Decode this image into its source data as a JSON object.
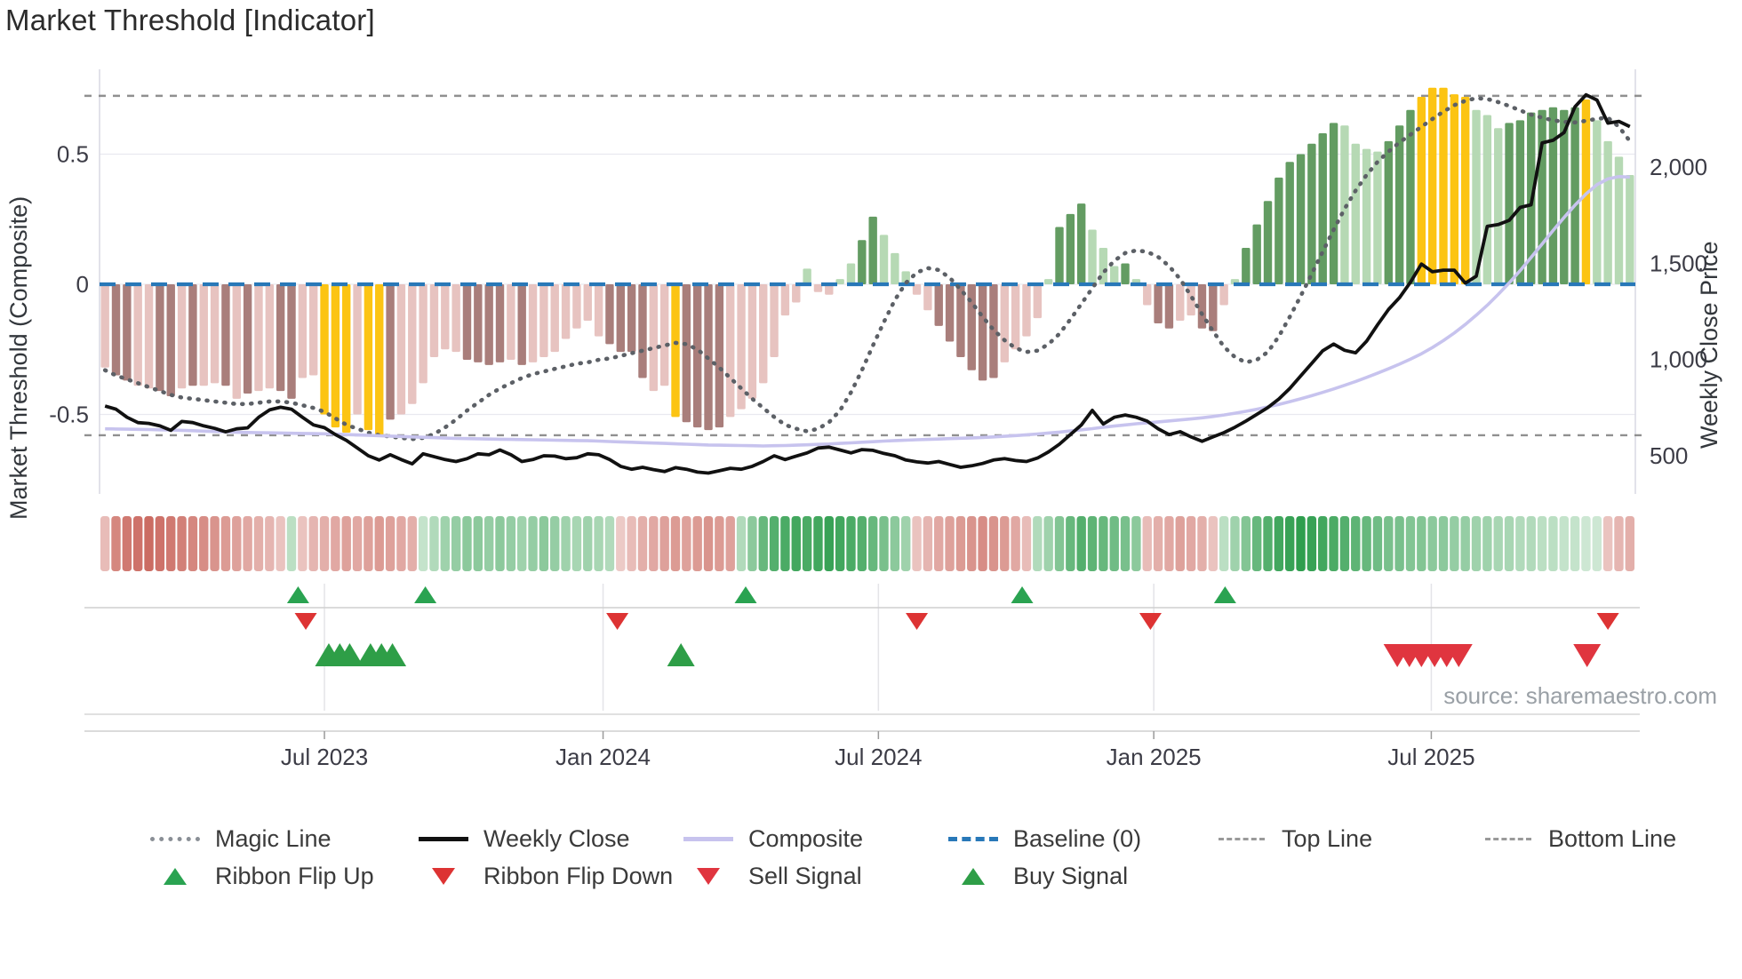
{
  "title": "Market Threshold [Indicator]",
  "source_text": "source: sharemaestro.com",
  "axes": {
    "left_title": "Market Threshold (Composite)",
    "right_title": "Weekly Close Price",
    "left_ticks": [
      {
        "value": 0.5,
        "label": "0.5"
      },
      {
        "value": 0.0,
        "label": "0"
      },
      {
        "value": -0.5,
        "label": "-0.5"
      }
    ],
    "right_ticks": [
      {
        "value": 2000,
        "label": "2,000"
      },
      {
        "value": 1500,
        "label": "1,500"
      },
      {
        "value": 1000,
        "label": "1,000"
      },
      {
        "value": 500,
        "label": "500"
      }
    ],
    "x_ticks": [
      {
        "week": 20.0,
        "label": "Jul 2023"
      },
      {
        "week": 45.4,
        "label": "Jan 2024"
      },
      {
        "week": 70.5,
        "label": "Jul 2024"
      },
      {
        "week": 95.6,
        "label": "Jan 2025"
      },
      {
        "week": 120.9,
        "label": "Jul 2025"
      }
    ]
  },
  "legend": {
    "items": [
      {
        "label": "Magic Line"
      },
      {
        "label": "Weekly Close"
      },
      {
        "label": "Composite"
      },
      {
        "label": "Baseline (0)"
      },
      {
        "label": "Top Line"
      },
      {
        "label": "Bottom Line"
      },
      {
        "label": "Ribbon Flip Up"
      },
      {
        "label": "Ribbon Flip Down"
      },
      {
        "label": "Sell Signal"
      },
      {
        "label": "Buy Signal"
      }
    ]
  },
  "colors": {
    "bar_pink": "#e7c3c0",
    "bar_mauve": "#a97e7b",
    "bar_gold": "#fcc413",
    "bar_light_green": "#b6d9b4",
    "bar_dark_green": "#639c62",
    "baseline_blue": "#2878b8",
    "magic_gray": "#5c6066",
    "weekly_black": "#111111",
    "composite_purple": "#c7c3ee",
    "threshold_gray": "#909090",
    "flip_up_green": "#2aa351",
    "flip_down_red": "#dd3333",
    "buy_green": "#2e9e47",
    "sell_red": "#e0353f",
    "ribbon_red_dark": "#c9655c",
    "ribbon_red_light": "#f8ebe9",
    "ribbon_green_dark": "#2f9e4e",
    "ribbon_green_light": "#e9f4ea",
    "grid": "#e9e9f0",
    "spine": "#d9d9e3",
    "tick_text": "#3c3c46"
  },
  "chart_data": {
    "type": "bar",
    "weeks": 140,
    "x_range_note": "weekly bars from ~Mar 2023 to ~Nov 2025",
    "left_ylim": [
      -0.8,
      0.82
    ],
    "right_ylim": [
      306,
      2498
    ],
    "baseline": 0,
    "top_line": 0.724,
    "bottom_line": -0.58,
    "bars": {
      "values": [
        -0.32,
        -0.35,
        -0.37,
        -0.39,
        -0.4,
        -0.41,
        -0.43,
        -0.4,
        -0.39,
        -0.39,
        -0.38,
        -0.39,
        -0.44,
        -0.42,
        -0.41,
        -0.4,
        -0.41,
        -0.44,
        -0.36,
        -0.35,
        -0.5,
        -0.55,
        -0.57,
        -0.5,
        -0.56,
        -0.58,
        -0.52,
        -0.5,
        -0.46,
        -0.38,
        -0.28,
        -0.25,
        -0.26,
        -0.29,
        -0.3,
        -0.31,
        -0.3,
        -0.29,
        -0.31,
        -0.3,
        -0.28,
        -0.26,
        -0.21,
        -0.17,
        -0.14,
        -0.2,
        -0.23,
        -0.26,
        -0.26,
        -0.36,
        -0.41,
        -0.39,
        -0.51,
        -0.53,
        -0.55,
        -0.56,
        -0.55,
        -0.51,
        -0.48,
        -0.44,
        -0.38,
        -0.28,
        -0.12,
        -0.07,
        0.06,
        -0.03,
        -0.04,
        0.02,
        0.08,
        0.17,
        0.26,
        0.19,
        0.12,
        0.05,
        -0.04,
        -0.1,
        -0.16,
        -0.22,
        -0.28,
        -0.33,
        -0.37,
        -0.36,
        -0.3,
        -0.25,
        -0.2,
        -0.13,
        0.02,
        0.22,
        0.27,
        0.31,
        0.21,
        0.14,
        0.07,
        0.08,
        0.02,
        -0.08,
        -0.15,
        -0.17,
        -0.14,
        -0.12,
        -0.17,
        -0.18,
        -0.08,
        0.02,
        0.14,
        0.23,
        0.32,
        0.41,
        0.47,
        0.5,
        0.54,
        0.58,
        0.62,
        0.61,
        0.54,
        0.52,
        0.51,
        0.55,
        0.61,
        0.67,
        0.72,
        0.755,
        0.755,
        0.73,
        0.72,
        0.67,
        0.65,
        0.6,
        0.62,
        0.63,
        0.66,
        0.67,
        0.68,
        0.67,
        0.68,
        0.71,
        0.63,
        0.55,
        0.49,
        0.42
      ],
      "color_keys": [
        "p",
        "m",
        "m",
        "p",
        "p",
        "m",
        "m",
        "p",
        "m",
        "p",
        "p",
        "m",
        "p",
        "m",
        "p",
        "p",
        "m",
        "m",
        "p",
        "p",
        "g",
        "g",
        "g",
        "p",
        "g",
        "g",
        "m",
        "p",
        "p",
        "p",
        "p",
        "p",
        "p",
        "m",
        "m",
        "m",
        "m",
        "p",
        "m",
        "p",
        "p",
        "p",
        "p",
        "p",
        "p",
        "p",
        "m",
        "m",
        "m",
        "m",
        "p",
        "p",
        "g",
        "m",
        "m",
        "m",
        "m",
        "p",
        "p",
        "p",
        "p",
        "p",
        "p",
        "p",
        "lg",
        "p",
        "p",
        "lg",
        "lg",
        "dg",
        "dg",
        "lg",
        "lg",
        "lg",
        "p",
        "p",
        "m",
        "m",
        "m",
        "m",
        "m",
        "m",
        "p",
        "p",
        "p",
        "p",
        "lg",
        "dg",
        "dg",
        "dg",
        "lg",
        "lg",
        "lg",
        "dg",
        "lg",
        "p",
        "m",
        "m",
        "p",
        "p",
        "m",
        "m",
        "p",
        "lg",
        "dg",
        "dg",
        "dg",
        "dg",
        "dg",
        "dg",
        "dg",
        "dg",
        "dg",
        "lg",
        "lg",
        "lg",
        "lg",
        "dg",
        "dg",
        "dg",
        "g",
        "g",
        "g",
        "g",
        "g",
        "lg",
        "lg",
        "lg",
        "dg",
        "dg",
        "dg",
        "dg",
        "dg",
        "dg",
        "dg",
        "g",
        "lg",
        "lg",
        "lg",
        "lg"
      ]
    },
    "series": [
      {
        "name": "Magic Line",
        "axis": "left",
        "values": [
          -0.33,
          -0.35,
          -0.365,
          -0.38,
          -0.395,
          -0.41,
          -0.425,
          -0.435,
          -0.44,
          -0.445,
          -0.45,
          -0.455,
          -0.46,
          -0.46,
          -0.455,
          -0.45,
          -0.45,
          -0.455,
          -0.465,
          -0.475,
          -0.49,
          -0.515,
          -0.54,
          -0.555,
          -0.57,
          -0.58,
          -0.585,
          -0.59,
          -0.595,
          -0.59,
          -0.575,
          -0.55,
          -0.52,
          -0.485,
          -0.455,
          -0.425,
          -0.4,
          -0.38,
          -0.36,
          -0.345,
          -0.335,
          -0.325,
          -0.315,
          -0.305,
          -0.3,
          -0.29,
          -0.285,
          -0.275,
          -0.265,
          -0.255,
          -0.245,
          -0.235,
          -0.225,
          -0.23,
          -0.25,
          -0.285,
          -0.32,
          -0.36,
          -0.4,
          -0.44,
          -0.475,
          -0.51,
          -0.54,
          -0.555,
          -0.565,
          -0.555,
          -0.53,
          -0.485,
          -0.415,
          -0.33,
          -0.235,
          -0.145,
          -0.06,
          0.005,
          0.045,
          0.062,
          0.055,
          0.025,
          -0.02,
          -0.07,
          -0.125,
          -0.175,
          -0.215,
          -0.245,
          -0.26,
          -0.255,
          -0.23,
          -0.19,
          -0.135,
          -0.075,
          -0.015,
          0.045,
          0.09,
          0.12,
          0.13,
          0.125,
          0.105,
          0.07,
          0.02,
          -0.045,
          -0.115,
          -0.18,
          -0.24,
          -0.28,
          -0.3,
          -0.29,
          -0.26,
          -0.2,
          -0.125,
          -0.045,
          0.04,
          0.125,
          0.21,
          0.29,
          0.36,
          0.42,
          0.47,
          0.51,
          0.545,
          0.575,
          0.605,
          0.635,
          0.663,
          0.688,
          0.705,
          0.715,
          0.712,
          0.7,
          0.685,
          0.668,
          0.652,
          0.64,
          0.63,
          0.624,
          0.622,
          0.628,
          0.636,
          0.64,
          0.605,
          0.55
        ]
      },
      {
        "name": "Weekly Close",
        "axis": "right",
        "values": [
          758,
          742,
          700,
          672,
          668,
          655,
          632,
          678,
          672,
          655,
          642,
          624,
          640,
          645,
          700,
          738,
          752,
          742,
          700,
          660,
          646,
          610,
          580,
          540,
          500,
          478,
          505,
          480,
          458,
          510,
          495,
          480,
          470,
          485,
          510,
          505,
          530,
          505,
          470,
          480,
          500,
          498,
          485,
          490,
          510,
          505,
          480,
          445,
          430,
          440,
          428,
          418,
          438,
          430,
          415,
          410,
          422,
          435,
          430,
          445,
          470,
          500,
          480,
          498,
          515,
          540,
          545,
          530,
          515,
          532,
          528,
          512,
          500,
          478,
          468,
          462,
          470,
          455,
          440,
          448,
          460,
          478,
          485,
          475,
          470,
          488,
          520,
          560,
          610,
          660,
          736,
          665,
          700,
          712,
          700,
          680,
          640,
          610,
          625,
          598,
          575,
          598,
          620,
          648,
          680,
          715,
          750,
          795,
          850,
          915,
          980,
          1045,
          1080,
          1048,
          1035,
          1095,
          1180,
          1260,
          1321,
          1402,
          1496,
          1456,
          1464,
          1464,
          1397,
          1433,
          1692,
          1701,
          1723,
          1790,
          1804,
          2125,
          2139,
          2179,
          2313,
          2375,
          2348,
          2228,
          2237,
          2210
        ]
      },
      {
        "name": "Composite",
        "axis": "right",
        "values": [
          640,
          639,
          638,
          637,
          636,
          635,
          634,
          632,
          630,
          628,
          626,
          624,
          622,
          621,
          620,
          619,
          618,
          617,
          616,
          615,
          614,
          612,
          610,
          608,
          606,
          604,
          602,
          600,
          598,
          596,
          594,
          592,
          590,
          589,
          588,
          587,
          586,
          585,
          584,
          583,
          582,
          581,
          580,
          579,
          578,
          576,
          574,
          572,
          570,
          568,
          566,
          564,
          562,
          560,
          558,
          556,
          555,
          554,
          553,
          552,
          551,
          552,
          553,
          555,
          557,
          559,
          561,
          564,
          567,
          570,
          573,
          576,
          579,
          581,
          583,
          585,
          587,
          589,
          591,
          593,
          595,
          598,
          601,
          605,
          609,
          613,
          618,
          623,
          629,
          635,
          641,
          648,
          654,
          660,
          666,
          671,
          676,
          681,
          686,
          691,
          697,
          704,
          712,
          721,
          731,
          742,
          754,
          767,
          781,
          796,
          812,
          829,
          847,
          866,
          886,
          907,
          929,
          952,
          976,
          1002,
          1030,
          1062,
          1098,
          1138,
          1182,
          1230,
          1282,
          1338,
          1398,
          1462,
          1530,
          1600,
          1670,
          1738,
          1802,
          1860,
          1908,
          1938,
          1950,
          1948
        ]
      }
    ],
    "ribbon": [
      -0.35,
      -0.75,
      -0.85,
      -0.9,
      -0.95,
      -0.9,
      -0.85,
      -0.8,
      -0.75,
      -0.7,
      -0.65,
      -0.6,
      -0.55,
      -0.5,
      -0.45,
      -0.4,
      -0.3,
      0.25,
      -0.3,
      -0.4,
      -0.45,
      -0.5,
      -0.55,
      -0.5,
      -0.55,
      -0.6,
      -0.55,
      -0.5,
      -0.45,
      0.2,
      0.3,
      0.4,
      0.45,
      0.5,
      0.5,
      0.45,
      0.5,
      0.45,
      0.4,
      0.45,
      0.5,
      0.45,
      0.4,
      0.35,
      0.4,
      0.35,
      0.3,
      -0.25,
      -0.35,
      -0.45,
      -0.5,
      -0.55,
      -0.6,
      -0.55,
      -0.6,
      -0.65,
      -0.6,
      -0.55,
      0.3,
      0.5,
      0.7,
      0.8,
      0.85,
      0.9,
      0.85,
      0.9,
      0.95,
      0.9,
      0.85,
      0.8,
      0.7,
      0.6,
      0.5,
      0.4,
      -0.3,
      -0.4,
      -0.5,
      -0.55,
      -0.6,
      -0.65,
      -0.7,
      -0.65,
      -0.6,
      -0.5,
      -0.35,
      0.3,
      0.4,
      0.55,
      0.7,
      0.8,
      0.75,
      0.7,
      0.65,
      0.6,
      0.5,
      -0.35,
      -0.45,
      -0.5,
      -0.55,
      -0.5,
      -0.45,
      -0.3,
      0.25,
      0.4,
      0.55,
      0.7,
      0.8,
      0.9,
      0.95,
      1.0,
      0.95,
      0.9,
      0.85,
      0.8,
      0.75,
      0.7,
      0.65,
      0.6,
      0.6,
      0.55,
      0.55,
      0.5,
      0.5,
      0.45,
      0.45,
      0.4,
      0.4,
      0.35,
      0.35,
      0.3,
      0.3,
      0.25,
      0.25,
      0.2,
      0.2,
      0.15,
      0.15,
      -0.3,
      -0.4,
      -0.45
    ],
    "signals": {
      "ribbon_flip_up_weeks": [
        17.6,
        29.2,
        58.4,
        83.6,
        102.1
      ],
      "ribbon_flip_down_weeks": [
        18.3,
        46.7,
        74.0,
        95.3,
        137.0
      ],
      "buy_weeks": [
        20.4,
        21.4,
        22.3,
        24.2,
        25.2,
        26.2,
        52.5
      ],
      "sell_weeks": [
        117.8,
        118.9,
        120.0,
        121.2,
        122.3,
        123.4,
        135.1
      ]
    }
  }
}
